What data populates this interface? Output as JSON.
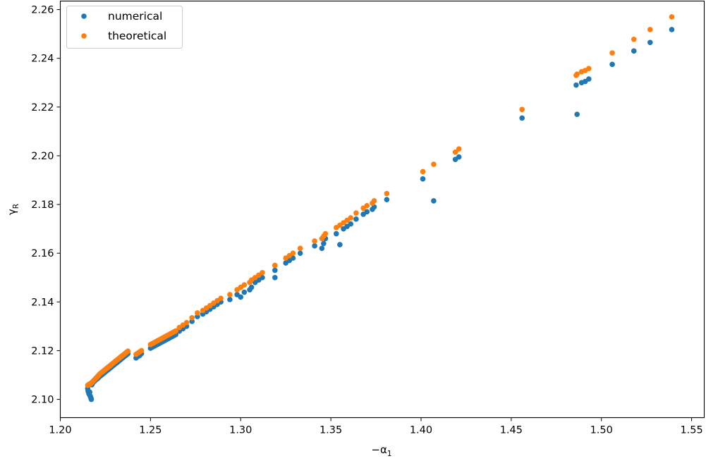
{
  "chart_data": {
    "type": "scatter",
    "xlabel": "−α",
    "xlabel_sub": "1",
    "ylabel": "γ",
    "ylabel_sub": "R",
    "xlim": [
      1.2,
      1.557
    ],
    "ylim": [
      2.0925,
      2.2635
    ],
    "xticks": [
      1.2,
      1.25,
      1.3,
      1.35,
      1.4,
      1.45,
      1.5,
      1.55
    ],
    "xtick_labels": [
      "1.20",
      "1.25",
      "1.30",
      "1.35",
      "1.40",
      "1.45",
      "1.50",
      "1.55"
    ],
    "yticks": [
      2.1,
      2.12,
      2.14,
      2.16,
      2.18,
      2.2,
      2.22,
      2.24,
      2.26
    ],
    "ytick_labels": [
      "2.10",
      "2.12",
      "2.14",
      "2.16",
      "2.18",
      "2.20",
      "2.22",
      "2.24",
      "2.26"
    ],
    "grid": false,
    "legend_position": "top-left",
    "series": [
      {
        "name": "numerical",
        "color": "#1f77b4",
        "x": [
          1.2152,
          1.2154,
          1.2156,
          1.2158,
          1.2161,
          1.2163,
          1.2165,
          1.2168,
          1.217,
          1.2172,
          1.2175,
          1.2178,
          1.218,
          1.2185,
          1.219,
          1.2195,
          1.22,
          1.2205,
          1.221,
          1.2215,
          1.222,
          1.2225,
          1.223,
          1.2235,
          1.224,
          1.2245,
          1.225,
          1.2255,
          1.226,
          1.2265,
          1.227,
          1.2275,
          1.228,
          1.2285,
          1.229,
          1.2295,
          1.23,
          1.2305,
          1.231,
          1.2315,
          1.232,
          1.2325,
          1.233,
          1.2335,
          1.234,
          1.2345,
          1.235,
          1.2355,
          1.236,
          1.2365,
          1.237,
          1.2375,
          1.242,
          1.243,
          1.244,
          1.245,
          1.25,
          1.251,
          1.252,
          1.253,
          1.254,
          1.255,
          1.256,
          1.257,
          1.258,
          1.259,
          1.26,
          1.261,
          1.262,
          1.263,
          1.264,
          1.266,
          1.268,
          1.27,
          1.273,
          1.276,
          1.279,
          1.281,
          1.283,
          1.285,
          1.287,
          1.289,
          1.294,
          1.298,
          1.3,
          1.302,
          1.305,
          1.306,
          1.308,
          1.31,
          1.312,
          1.319,
          1.319,
          1.325,
          1.327,
          1.329,
          1.333,
          1.341,
          1.345,
          1.346,
          1.347,
          1.353,
          1.355,
          1.357,
          1.359,
          1.361,
          1.364,
          1.368,
          1.37,
          1.373,
          1.374,
          1.381,
          1.401,
          1.407,
          1.419,
          1.421,
          1.456,
          1.486,
          1.4865,
          1.489,
          1.491,
          1.493,
          1.506,
          1.518,
          1.527,
          1.539
        ],
        "y": [
          2.1045,
          2.1035,
          2.103,
          2.1025,
          2.102,
          2.103,
          2.1015,
          2.101,
          2.1005,
          2.1,
          2.106,
          2.1065,
          2.1068,
          2.1072,
          2.1075,
          2.108,
          2.1082,
          2.1085,
          2.1088,
          2.1092,
          2.1095,
          2.1098,
          2.1101,
          2.1104,
          2.1107,
          2.111,
          2.1113,
          2.1116,
          2.1119,
          2.1122,
          2.1125,
          2.1128,
          2.1131,
          2.1134,
          2.1137,
          2.114,
          2.1143,
          2.1146,
          2.1149,
          2.1152,
          2.1155,
          2.1158,
          2.1161,
          2.1164,
          2.1167,
          2.117,
          2.1173,
          2.1176,
          2.1179,
          2.1182,
          2.1185,
          2.1188,
          2.117,
          2.1176,
          2.118,
          2.1188,
          2.121,
          2.1214,
          2.1218,
          2.1222,
          2.1226,
          2.123,
          2.1234,
          2.1238,
          2.1242,
          2.1246,
          2.125,
          2.1254,
          2.1258,
          2.1262,
          2.1266,
          2.128,
          2.129,
          2.13,
          2.132,
          2.134,
          2.135,
          2.136,
          2.137,
          2.138,
          2.139,
          2.14,
          2.141,
          2.143,
          2.142,
          2.144,
          2.145,
          2.146,
          2.148,
          2.149,
          2.15,
          2.15,
          2.153,
          2.156,
          2.157,
          2.158,
          2.16,
          2.163,
          2.162,
          2.164,
          2.166,
          2.168,
          2.1635,
          2.17,
          2.171,
          2.172,
          2.174,
          2.176,
          2.177,
          2.178,
          2.179,
          2.182,
          2.1905,
          2.1815,
          2.1985,
          2.1995,
          2.2155,
          2.229,
          2.217,
          2.23,
          2.2305,
          2.2315,
          2.2375,
          2.243,
          2.2465,
          2.2518
        ]
      },
      {
        "name": "theoretical",
        "color": "#ff7f0e",
        "x": [
          1.2152,
          1.2154,
          1.2156,
          1.2158,
          1.2161,
          1.2163,
          1.2165,
          1.2168,
          1.217,
          1.2172,
          1.2175,
          1.2178,
          1.218,
          1.2185,
          1.219,
          1.2195,
          1.22,
          1.2205,
          1.221,
          1.2215,
          1.222,
          1.2225,
          1.223,
          1.2235,
          1.224,
          1.2245,
          1.225,
          1.2255,
          1.226,
          1.2265,
          1.227,
          1.2275,
          1.228,
          1.2285,
          1.229,
          1.2295,
          1.23,
          1.2305,
          1.231,
          1.2315,
          1.232,
          1.2325,
          1.233,
          1.2335,
          1.234,
          1.2345,
          1.235,
          1.2355,
          1.236,
          1.2365,
          1.237,
          1.2375,
          1.242,
          1.243,
          1.244,
          1.245,
          1.25,
          1.251,
          1.252,
          1.253,
          1.254,
          1.255,
          1.256,
          1.257,
          1.258,
          1.259,
          1.26,
          1.261,
          1.262,
          1.263,
          1.264,
          1.266,
          1.268,
          1.27,
          1.273,
          1.276,
          1.279,
          1.281,
          1.283,
          1.285,
          1.287,
          1.289,
          1.294,
          1.298,
          1.3,
          1.302,
          1.305,
          1.306,
          1.308,
          1.31,
          1.312,
          1.319,
          1.319,
          1.325,
          1.327,
          1.329,
          1.333,
          1.341,
          1.345,
          1.346,
          1.347,
          1.353,
          1.355,
          1.357,
          1.359,
          1.361,
          1.364,
          1.368,
          1.37,
          1.373,
          1.374,
          1.381,
          1.401,
          1.407,
          1.419,
          1.421,
          1.456,
          1.486,
          1.4865,
          1.489,
          1.491,
          1.493,
          1.506,
          1.518,
          1.527,
          1.539
        ],
        "y": [
          2.1058,
          2.1059,
          2.106,
          2.1061,
          2.1062,
          2.1063,
          2.1064,
          2.1065,
          2.1066,
          2.1067,
          2.1069,
          2.1071,
          2.1073,
          2.1077,
          2.1081,
          2.1085,
          2.1089,
          2.1093,
          2.1097,
          2.1101,
          2.1105,
          2.1108,
          2.1111,
          2.1114,
          2.1117,
          2.112,
          2.1123,
          2.1126,
          2.1129,
          2.1132,
          2.1135,
          2.1138,
          2.1141,
          2.1144,
          2.1147,
          2.115,
          2.1153,
          2.1156,
          2.1159,
          2.1162,
          2.1165,
          2.1168,
          2.1171,
          2.1174,
          2.1177,
          2.118,
          2.1183,
          2.1186,
          2.1189,
          2.1192,
          2.1195,
          2.1198,
          2.1185,
          2.119,
          2.1195,
          2.12,
          2.1225,
          2.1229,
          2.1233,
          2.1237,
          2.1241,
          2.1245,
          2.1249,
          2.1253,
          2.1257,
          2.1261,
          2.1265,
          2.1269,
          2.1273,
          2.1277,
          2.1281,
          2.1295,
          2.1305,
          2.1315,
          2.1335,
          2.1355,
          2.1365,
          2.1375,
          2.1385,
          2.1395,
          2.1405,
          2.1415,
          2.143,
          2.145,
          2.146,
          2.147,
          2.148,
          2.149,
          2.15,
          2.151,
          2.152,
          2.155,
          2.155,
          2.158,
          2.159,
          2.16,
          2.162,
          2.165,
          2.166,
          2.167,
          2.168,
          2.1705,
          2.1715,
          2.1725,
          2.1735,
          2.1745,
          2.1765,
          2.1785,
          2.1795,
          2.1805,
          2.1815,
          2.1845,
          2.1935,
          2.1965,
          2.2015,
          2.2028,
          2.219,
          2.233,
          2.2335,
          2.2345,
          2.235,
          2.2358,
          2.2422,
          2.2478,
          2.2518,
          2.257
        ]
      }
    ]
  }
}
